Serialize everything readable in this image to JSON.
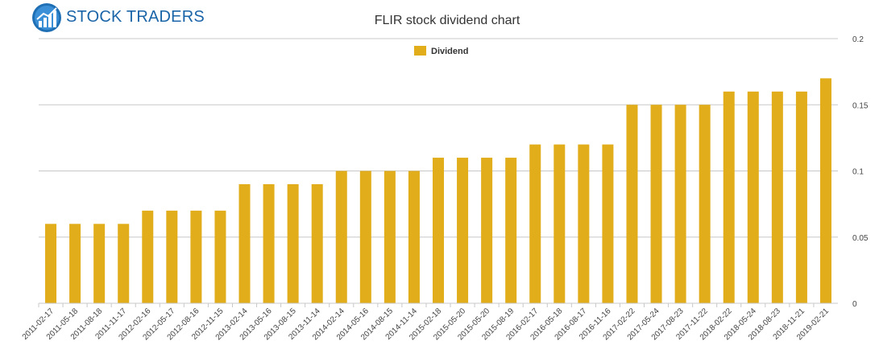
{
  "logo": {
    "text": "STOCK TRADERS",
    "color": "#1a64a8"
  },
  "chart_data": {
    "type": "bar",
    "title": "FLIR stock dividend chart",
    "xlabel": "",
    "ylabel": "",
    "legend": {
      "position": "top-center"
    },
    "series": [
      {
        "name": "Dividend",
        "color": "#e1ad1a",
        "values": [
          0.06,
          0.06,
          0.06,
          0.06,
          0.07,
          0.07,
          0.07,
          0.07,
          0.09,
          0.09,
          0.09,
          0.09,
          0.1,
          0.1,
          0.1,
          0.1,
          0.11,
          0.11,
          0.11,
          0.11,
          0.12,
          0.12,
          0.12,
          0.12,
          0.15,
          0.15,
          0.15,
          0.15,
          0.16,
          0.16,
          0.16,
          0.16,
          0.17
        ]
      }
    ],
    "categories": [
      "2011-02-17",
      "2011-05-18",
      "2011-08-18",
      "2011-11-17",
      "2012-02-16",
      "2012-05-17",
      "2012-08-16",
      "2012-11-15",
      "2013-02-14",
      "2013-05-16",
      "2013-08-15",
      "2013-11-14",
      "2014-02-14",
      "2014-05-16",
      "2014-08-15",
      "2014-11-14",
      "2015-02-18",
      "2015-05-20",
      "2015-05-20",
      "2015-08-19",
      "2016-02-17",
      "2016-05-18",
      "2016-08-17",
      "2016-11-16",
      "2017-02-22",
      "2017-05-24",
      "2017-08-23",
      "2017-11-22",
      "2018-02-22",
      "2018-05-24",
      "2018-08-23",
      "2018-11-21",
      "2019-02-21"
    ],
    "ylim": [
      0,
      0.2
    ],
    "yticks": [
      0,
      0.05,
      0.1,
      0.15,
      0.2
    ],
    "ytick_labels": [
      "0",
      "0.05",
      "0.1",
      "0.15",
      "0.2"
    ],
    "yaxis_side": "right",
    "grid": true
  }
}
